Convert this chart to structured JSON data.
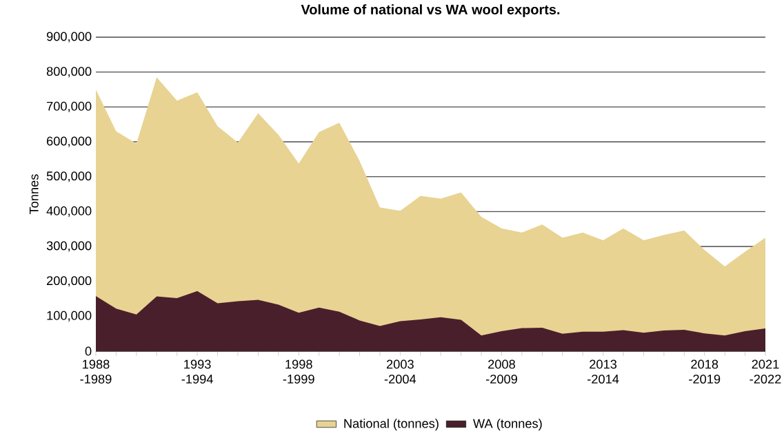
{
  "chart_data": {
    "type": "area",
    "title": "Volume of national vs WA wool exports.",
    "ylabel": "Tonnes",
    "categories": [
      "1988 -1989",
      null,
      null,
      null,
      null,
      "1993 -1994",
      null,
      null,
      null,
      null,
      "1998 -1999",
      null,
      null,
      null,
      null,
      "2003 -2004",
      null,
      null,
      null,
      null,
      "2008 -2009",
      null,
      null,
      null,
      null,
      "2013 -2014",
      null,
      null,
      null,
      null,
      "2018 -2019",
      null,
      null,
      "2021 -2022"
    ],
    "series": [
      {
        "name": "National (tonnes)",
        "color": "#e8d393",
        "values": [
          750000,
          630000,
          595000,
          785000,
          718000,
          742000,
          645000,
          598000,
          682000,
          620000,
          538000,
          628000,
          655000,
          545000,
          412000,
          402000,
          445000,
          437000,
          455000,
          385000,
          352000,
          340000,
          363000,
          325000,
          340000,
          318000,
          352000,
          318000,
          333000,
          346000,
          290000,
          243000,
          285000,
          325000
        ]
      },
      {
        "name": "WA (tonnes)",
        "color": "#4a1f2c",
        "values": [
          158000,
          122000,
          105000,
          157000,
          152000,
          172000,
          137000,
          143000,
          147000,
          133000,
          110000,
          125000,
          113000,
          88000,
          72000,
          86000,
          91000,
          97000,
          90000,
          45000,
          57000,
          66000,
          67000,
          50000,
          56000,
          56000,
          60000,
          53000,
          59000,
          61000,
          51000,
          45000,
          57000,
          65000
        ]
      }
    ],
    "ylim": [
      0,
      900000
    ],
    "yticks": [
      0,
      {
        "value": 100000,
        "label": "100,000"
      },
      {
        "value": 200000,
        "label": "200,000"
      },
      {
        "value": 300000,
        "label": "300,000"
      },
      {
        "value": 400000,
        "label": "400,000"
      },
      {
        "value": 500000,
        "label": "500,000"
      },
      {
        "value": 600000,
        "label": "600,000"
      },
      {
        "value": 700000,
        "label": "700,000"
      },
      {
        "value": 800000,
        "label": "800,000"
      },
      {
        "value": 900000,
        "label": "900,000"
      }
    ],
    "grid": "y",
    "legend": "bottom"
  }
}
